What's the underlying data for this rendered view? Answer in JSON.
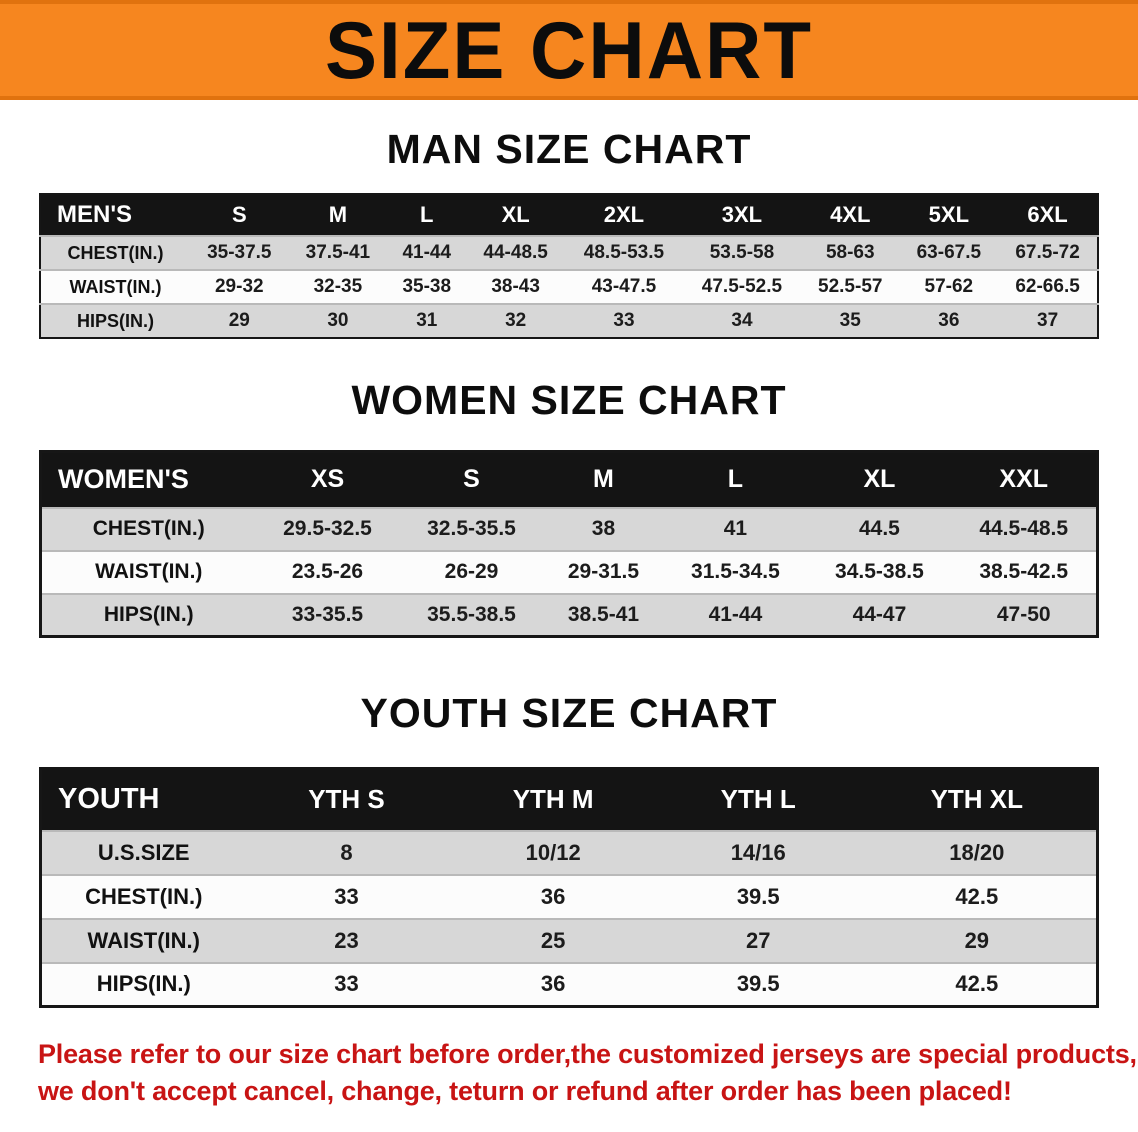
{
  "banner": {
    "title": "SIZE CHART"
  },
  "sections": [
    {
      "heading": "MAN SIZE CHART",
      "table": {
        "header": [
          "MEN'S",
          "S",
          "M",
          "L",
          "XL",
          "2XL",
          "3XL",
          "4XL",
          "5XL",
          "6XL"
        ],
        "rows": [
          {
            "label": "CHEST(IN.)",
            "values": [
              "35-37.5",
              "37.5-41",
              "41-44",
              "44-48.5",
              "48.5-53.5",
              "53.5-58",
              "58-63",
              "63-67.5",
              "67.5-72"
            ]
          },
          {
            "label": "WAIST(IN.)",
            "values": [
              "29-32",
              "32-35",
              "35-38",
              "38-43",
              "43-47.5",
              "47.5-52.5",
              "52.5-57",
              "57-62",
              "62-66.5"
            ]
          },
          {
            "label": "HIPS(IN.)",
            "values": [
              "29",
              "30",
              "31",
              "32",
              "33",
              "34",
              "35",
              "36",
              "37"
            ]
          }
        ]
      }
    },
    {
      "heading": "WOMEN SIZE CHART",
      "table": {
        "header": [
          "WOMEN'S",
          "XS",
          "S",
          "M",
          "L",
          "XL",
          "XXL"
        ],
        "rows": [
          {
            "label": "CHEST(IN.)",
            "values": [
              "29.5-32.5",
              "32.5-35.5",
              "38",
              "41",
              "44.5",
              "44.5-48.5"
            ]
          },
          {
            "label": "WAIST(IN.)",
            "values": [
              "23.5-26",
              "26-29",
              "29-31.5",
              "31.5-34.5",
              "34.5-38.5",
              "38.5-42.5"
            ]
          },
          {
            "label": "HIPS(IN.)",
            "values": [
              "33-35.5",
              "35.5-38.5",
              "38.5-41",
              "41-44",
              "44-47",
              "47-50"
            ]
          }
        ]
      }
    },
    {
      "heading": "YOUTH SIZE CHART",
      "table": {
        "header": [
          "YOUTH",
          "YTH S",
          "YTH M",
          "YTH L",
          "YTH XL"
        ],
        "rows": [
          {
            "label": "U.S.SIZE",
            "values": [
              "8",
              "10/12",
              "14/16",
              "18/20"
            ]
          },
          {
            "label": "CHEST(IN.)",
            "values": [
              "33",
              "36",
              "39.5",
              "42.5"
            ]
          },
          {
            "label": "WAIST(IN.)",
            "values": [
              "23",
              "25",
              "27",
              "29"
            ]
          },
          {
            "label": "HIPS(IN.)",
            "values": [
              "33",
              "36",
              "39.5",
              "42.5"
            ]
          }
        ]
      }
    }
  ],
  "disclaimer": {
    "lines": [
      "Please refer to our size chart before order,the customized jerseys are special products,",
      "we don't accept cancel, change, teturn or refund after order has been placed!"
    ]
  },
  "colors": {
    "banner_orange": "#f6861f",
    "table_header_black": "#141414",
    "row_stripe_gray": "#d7d7d7",
    "disclaimer_red": "#c81414"
  }
}
